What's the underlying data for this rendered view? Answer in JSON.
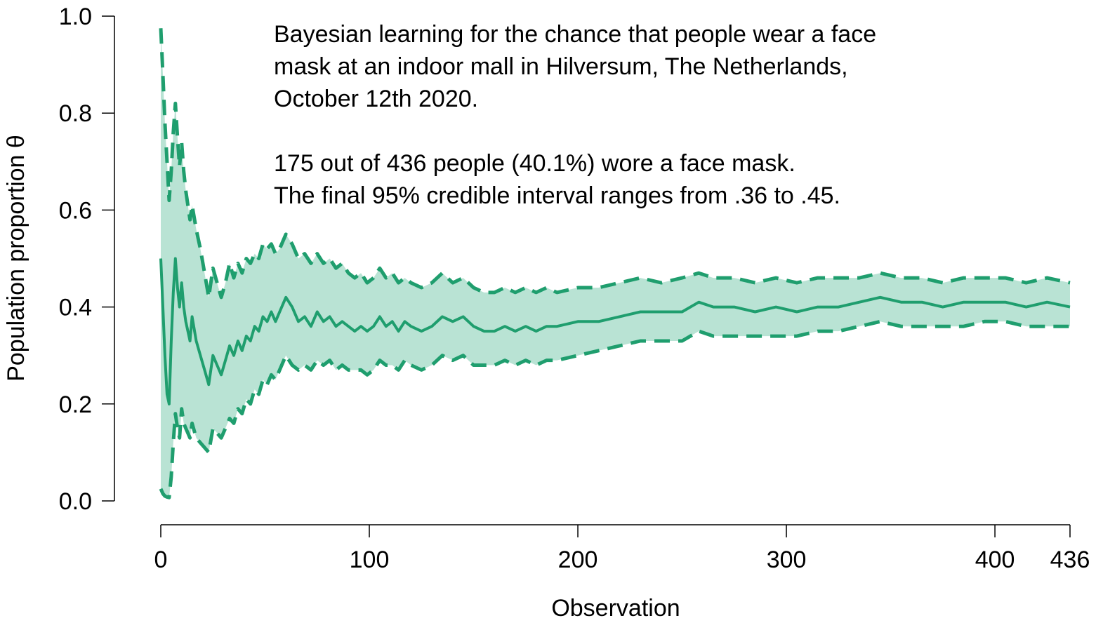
{
  "chart_data": {
    "type": "line",
    "xlabel": "Observation",
    "ylabel": "Population proportion θ",
    "xlim": [
      0,
      436
    ],
    "ylim": [
      0,
      1
    ],
    "x_ticks": [
      "0",
      "100",
      "200",
      "300",
      "400",
      "436"
    ],
    "x_tick_values": [
      0,
      100,
      200,
      300,
      400,
      436
    ],
    "y_ticks": [
      "0.0",
      "0.2",
      "0.4",
      "0.6",
      "0.8",
      "1.0"
    ],
    "y_tick_values": [
      0,
      0.2,
      0.4,
      0.6,
      0.8,
      1.0
    ],
    "grid": false,
    "colors": {
      "line": "#1f9e6e",
      "band": "#b9e3d4"
    },
    "annotation_lines": [
      "Bayesian learning for the chance that people wear a face",
      "mask at an indoor mall in Hilversum, The Netherlands,",
      "October 12th 2020.",
      "",
      "175 out of 436 people (40.1%) wore a face mask.",
      "The final 95% credible interval ranges from .36 to .45."
    ],
    "series": [
      {
        "line": "solid",
        "x": [
          0,
          1,
          2,
          3,
          4,
          5,
          6,
          7,
          8,
          9,
          10,
          11,
          12,
          13,
          14,
          15,
          17,
          19,
          21,
          23,
          25,
          27,
          29,
          31,
          33,
          35,
          37,
          39,
          41,
          43,
          45,
          47,
          49,
          51,
          53,
          55,
          57,
          60,
          63,
          66,
          69,
          72,
          75,
          78,
          81,
          84,
          87,
          90,
          93,
          96,
          99,
          102,
          105,
          108,
          111,
          114,
          117,
          120,
          125,
          130,
          135,
          140,
          145,
          150,
          155,
          160,
          165,
          170,
          175,
          180,
          185,
          190,
          200,
          210,
          220,
          230,
          240,
          250,
          258,
          265,
          275,
          285,
          295,
          305,
          315,
          325,
          335,
          345,
          355,
          365,
          375,
          385,
          395,
          405,
          415,
          425,
          436
        ],
        "values": [
          0.5,
          0.4,
          0.3,
          0.22,
          0.2,
          0.33,
          0.43,
          0.5,
          0.44,
          0.4,
          0.45,
          0.4,
          0.37,
          0.35,
          0.33,
          0.38,
          0.33,
          0.3,
          0.27,
          0.24,
          0.3,
          0.28,
          0.26,
          0.29,
          0.32,
          0.3,
          0.33,
          0.31,
          0.34,
          0.33,
          0.36,
          0.35,
          0.38,
          0.37,
          0.39,
          0.37,
          0.39,
          0.42,
          0.4,
          0.37,
          0.38,
          0.36,
          0.39,
          0.37,
          0.38,
          0.36,
          0.37,
          0.36,
          0.35,
          0.36,
          0.35,
          0.36,
          0.38,
          0.36,
          0.37,
          0.35,
          0.37,
          0.36,
          0.35,
          0.36,
          0.38,
          0.37,
          0.38,
          0.36,
          0.35,
          0.35,
          0.36,
          0.35,
          0.36,
          0.35,
          0.36,
          0.36,
          0.37,
          0.37,
          0.38,
          0.39,
          0.39,
          0.39,
          0.41,
          0.4,
          0.4,
          0.39,
          0.4,
          0.39,
          0.4,
          0.4,
          0.41,
          0.42,
          0.41,
          0.41,
          0.4,
          0.41,
          0.41,
          0.41,
          0.4,
          0.41,
          0.4
        ]
      },
      {
        "line": "dashed",
        "x": [
          0,
          1,
          2,
          3,
          4,
          5,
          6,
          7,
          8,
          9,
          10,
          11,
          12,
          13,
          14,
          15,
          17,
          19,
          21,
          23,
          25,
          27,
          29,
          31,
          33,
          35,
          37,
          39,
          41,
          43,
          45,
          47,
          49,
          51,
          53,
          55,
          57,
          60,
          63,
          66,
          69,
          72,
          75,
          78,
          81,
          84,
          87,
          90,
          93,
          96,
          99,
          102,
          105,
          108,
          111,
          114,
          117,
          120,
          125,
          130,
          135,
          140,
          145,
          150,
          155,
          160,
          165,
          170,
          175,
          180,
          185,
          190,
          200,
          210,
          220,
          230,
          240,
          250,
          258,
          265,
          275,
          285,
          295,
          305,
          315,
          325,
          335,
          345,
          355,
          365,
          375,
          385,
          395,
          405,
          415,
          425,
          436
        ],
        "values": [
          0.025,
          0.015,
          0.01,
          0.008,
          0.007,
          0.05,
          0.12,
          0.18,
          0.15,
          0.13,
          0.19,
          0.16,
          0.15,
          0.14,
          0.13,
          0.16,
          0.13,
          0.12,
          0.11,
          0.1,
          0.15,
          0.14,
          0.13,
          0.15,
          0.17,
          0.16,
          0.19,
          0.18,
          0.21,
          0.2,
          0.23,
          0.22,
          0.25,
          0.24,
          0.26,
          0.25,
          0.27,
          0.3,
          0.28,
          0.27,
          0.28,
          0.27,
          0.29,
          0.28,
          0.29,
          0.27,
          0.28,
          0.27,
          0.27,
          0.27,
          0.26,
          0.27,
          0.29,
          0.28,
          0.28,
          0.27,
          0.29,
          0.28,
          0.27,
          0.28,
          0.3,
          0.29,
          0.3,
          0.28,
          0.28,
          0.28,
          0.29,
          0.28,
          0.29,
          0.28,
          0.29,
          0.29,
          0.3,
          0.31,
          0.32,
          0.33,
          0.33,
          0.33,
          0.35,
          0.34,
          0.34,
          0.34,
          0.34,
          0.34,
          0.35,
          0.35,
          0.36,
          0.37,
          0.36,
          0.36,
          0.36,
          0.36,
          0.37,
          0.37,
          0.36,
          0.36,
          0.36
        ]
      },
      {
        "line": "dashed",
        "x": [
          0,
          1,
          2,
          3,
          4,
          5,
          6,
          7,
          8,
          9,
          10,
          11,
          12,
          13,
          14,
          15,
          17,
          19,
          21,
          23,
          25,
          27,
          29,
          31,
          33,
          35,
          37,
          39,
          41,
          43,
          45,
          47,
          49,
          51,
          53,
          55,
          57,
          60,
          63,
          66,
          69,
          72,
          75,
          78,
          81,
          84,
          87,
          90,
          93,
          96,
          99,
          102,
          105,
          108,
          111,
          114,
          117,
          120,
          125,
          130,
          135,
          140,
          145,
          150,
          155,
          160,
          165,
          170,
          175,
          180,
          185,
          190,
          200,
          210,
          220,
          230,
          240,
          250,
          258,
          265,
          275,
          285,
          295,
          305,
          315,
          325,
          335,
          345,
          355,
          365,
          375,
          385,
          395,
          405,
          415,
          425,
          436
        ],
        "values": [
          0.975,
          0.88,
          0.78,
          0.7,
          0.62,
          0.68,
          0.76,
          0.82,
          0.75,
          0.69,
          0.74,
          0.68,
          0.64,
          0.61,
          0.58,
          0.61,
          0.56,
          0.52,
          0.47,
          0.42,
          0.48,
          0.45,
          0.42,
          0.45,
          0.49,
          0.46,
          0.49,
          0.47,
          0.5,
          0.49,
          0.51,
          0.5,
          0.53,
          0.52,
          0.53,
          0.51,
          0.52,
          0.55,
          0.53,
          0.5,
          0.51,
          0.49,
          0.51,
          0.49,
          0.5,
          0.48,
          0.49,
          0.47,
          0.46,
          0.47,
          0.45,
          0.46,
          0.48,
          0.46,
          0.47,
          0.45,
          0.46,
          0.45,
          0.44,
          0.45,
          0.47,
          0.45,
          0.46,
          0.44,
          0.43,
          0.43,
          0.44,
          0.43,
          0.44,
          0.43,
          0.44,
          0.43,
          0.44,
          0.44,
          0.45,
          0.46,
          0.45,
          0.46,
          0.47,
          0.46,
          0.46,
          0.45,
          0.46,
          0.45,
          0.46,
          0.46,
          0.46,
          0.47,
          0.46,
          0.46,
          0.45,
          0.46,
          0.46,
          0.46,
          0.45,
          0.46,
          0.45
        ]
      }
    ]
  }
}
